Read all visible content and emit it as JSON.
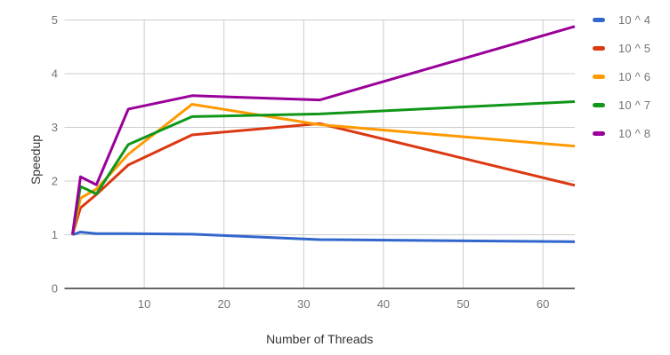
{
  "chart_data": {
    "type": "line",
    "title": "",
    "xlabel": "Number of Threads",
    "ylabel": "Speedup",
    "x": [
      1,
      2,
      4,
      8,
      16,
      32,
      64
    ],
    "xlim": [
      0,
      64
    ],
    "ylim": [
      0,
      5
    ],
    "x_ticks": [
      10,
      20,
      30,
      40,
      50,
      60
    ],
    "y_ticks": [
      0,
      1,
      2,
      3,
      4,
      5
    ],
    "grid": true,
    "legend_position": "right",
    "series": [
      {
        "name": "10 ^ 4",
        "color": "#3366CC",
        "values": [
          1.0,
          1.05,
          1.02,
          1.02,
          1.01,
          0.91,
          0.87
        ]
      },
      {
        "name": "10 ^ 5",
        "color": "#DC3912",
        "values": [
          1.0,
          1.5,
          1.75,
          2.3,
          2.86,
          3.07,
          1.92
        ]
      },
      {
        "name": "10 ^ 6",
        "color": "#FF9900",
        "values": [
          1.0,
          1.68,
          1.85,
          2.5,
          3.43,
          3.05,
          2.65
        ]
      },
      {
        "name": "10 ^ 7",
        "color": "#109618",
        "values": [
          1.0,
          1.9,
          1.76,
          2.68,
          3.2,
          3.25,
          3.48
        ]
      },
      {
        "name": "10 ^ 8",
        "color": "#990099",
        "values": [
          1.0,
          2.08,
          1.93,
          3.34,
          3.59,
          3.51,
          4.88
        ]
      }
    ],
    "colors": {
      "gridline": "#cccccc",
      "baseline": "#666666",
      "tick_label": "#757575",
      "axis_title": "#333333",
      "background": "#ffffff"
    }
  }
}
